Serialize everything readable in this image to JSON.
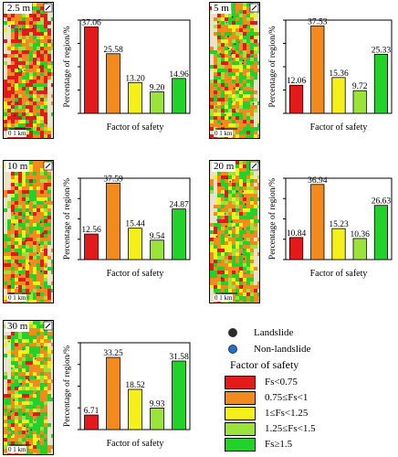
{
  "colors": {
    "cls1": "#e31a1c",
    "cls2": "#f28a1e",
    "cls3": "#f5f01a",
    "cls4": "#9be33a",
    "cls5": "#22d22a",
    "landslide": "#2a2a2a",
    "nonlandslide": "#1f6fd6"
  },
  "scale_text": "0     1 km",
  "legend": {
    "landslide": "Landslide",
    "nonlandslide": "Non-landslide",
    "title": "Factor of safety",
    "classes": [
      "Fs<0.75",
      "0.75≤Fs<1",
      "1≤Fs<1.25",
      "1.25≤Fs<1.5",
      "Fs≥1.5"
    ]
  },
  "chart_data": [
    {
      "type": "bar",
      "map_label": "2.5 m",
      "ylabel": "Percentage of region/%",
      "xlabel": "Factor of safety",
      "values": [
        37.06,
        25.58,
        13.2,
        9.2,
        14.96
      ],
      "labels": [
        "37.06",
        "25.58",
        "13.20",
        "9.20",
        "14.96"
      ]
    },
    {
      "type": "bar",
      "map_label": "5 m",
      "ylabel": "Percentage of region/%",
      "xlabel": "Factor of safety",
      "values": [
        12.06,
        37.53,
        15.36,
        9.72,
        25.33
      ],
      "labels": [
        "12.06",
        "37.53",
        "15.36",
        "9.72",
        "25.33"
      ]
    },
    {
      "type": "bar",
      "map_label": "10 m",
      "ylabel": "Percentage of region/%",
      "xlabel": "Factor of safety",
      "values": [
        12.56,
        37.59,
        15.44,
        9.54,
        24.87
      ],
      "labels": [
        "12.56",
        "37.59",
        "15.44",
        "9.54",
        "24.87"
      ]
    },
    {
      "type": "bar",
      "map_label": "20 m",
      "ylabel": "Percentage of region/%",
      "xlabel": "Factor of safety",
      "values": [
        10.84,
        36.94,
        15.23,
        10.36,
        26.63
      ],
      "labels": [
        "10.84",
        "36.94",
        "15.23",
        "10.36",
        "26.63"
      ]
    },
    {
      "type": "bar",
      "map_label": "30 m",
      "ylabel": "Percentage of region/%",
      "xlabel": "Factor of safety",
      "values": [
        6.71,
        33.25,
        18.52,
        9.93,
        31.58
      ],
      "labels": [
        "6.71",
        "33.25",
        "18.52",
        "9.93",
        "31.58"
      ]
    }
  ]
}
